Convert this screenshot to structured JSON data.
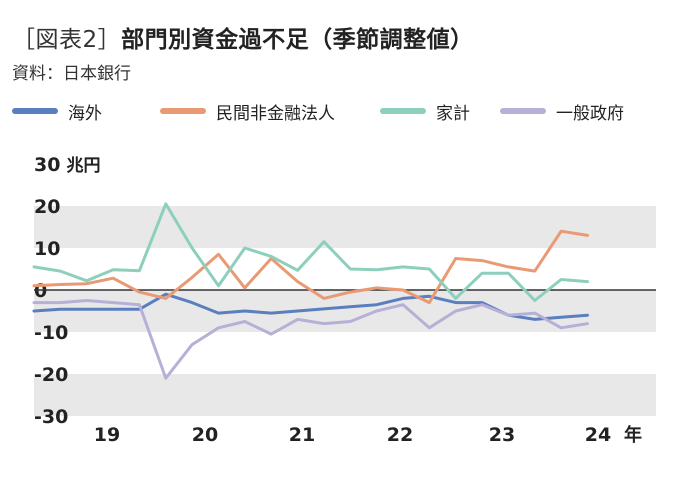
{
  "header": {
    "tag": "［図表2］",
    "title": "部門別資金過不足（季節調整値）",
    "source": "資料：日本銀行"
  },
  "chart_data": {
    "type": "line",
    "x_ticks": [
      "19",
      "20",
      "21",
      "22",
      "23",
      "24"
    ],
    "x_unit": "年",
    "y_ticks": [
      30,
      20,
      10,
      0,
      -10,
      -20,
      -30
    ],
    "y_unit": "兆円",
    "ylim": [
      -30,
      30
    ],
    "xlim": [
      2019.0,
      2024.9
    ],
    "grid": "alternating horizontal bands",
    "legend_placement": "top",
    "x": [
      2019.0,
      2019.25,
      2019.5,
      2019.75,
      2020.0,
      2020.25,
      2020.5,
      2020.75,
      2021.0,
      2021.25,
      2021.5,
      2021.75,
      2022.0,
      2022.25,
      2022.5,
      2022.75,
      2023.0,
      2023.25,
      2023.5,
      2023.75,
      2024.0,
      2024.25
    ],
    "series": [
      {
        "name": "海外",
        "color": "#5a7fbf",
        "values": [
          -5,
          -4.6,
          -4.6,
          -4.6,
          -4.6,
          -1,
          -3,
          -5.5,
          -5,
          -5.5,
          -5,
          -4.5,
          -4,
          -3.5,
          -2,
          -1.5,
          -3,
          -3,
          -6,
          -7,
          -6.5,
          -6
        ]
      },
      {
        "name": "民間非金融法人",
        "color": "#e99a74",
        "values": [
          1,
          1.3,
          1.5,
          2.8,
          -0.5,
          -2,
          3,
          8.5,
          0.5,
          7.5,
          2,
          -2,
          -0.5,
          0.5,
          0,
          -3,
          7.5,
          7,
          5.5,
          4.5,
          14,
          13
        ]
      },
      {
        "name": "家計",
        "color": "#8dcfbd",
        "values": [
          5.5,
          4.5,
          2.2,
          4.8,
          4.6,
          20.5,
          10,
          1,
          10,
          8,
          4.7,
          11.5,
          5,
          4.8,
          5.5,
          5,
          -2,
          4,
          4,
          -2.5,
          2.5,
          2
        ]
      },
      {
        "name": "一般政府",
        "color": "#b7b0d6",
        "values": [
          -3,
          -3,
          -2.5,
          -3,
          -3.5,
          -21,
          -13,
          -9,
          -7.5,
          -10.5,
          -7,
          -8,
          -7.5,
          -5,
          -3.5,
          -9,
          -5,
          -3.5,
          -6,
          -5.5,
          -9,
          -8
        ]
      }
    ]
  }
}
